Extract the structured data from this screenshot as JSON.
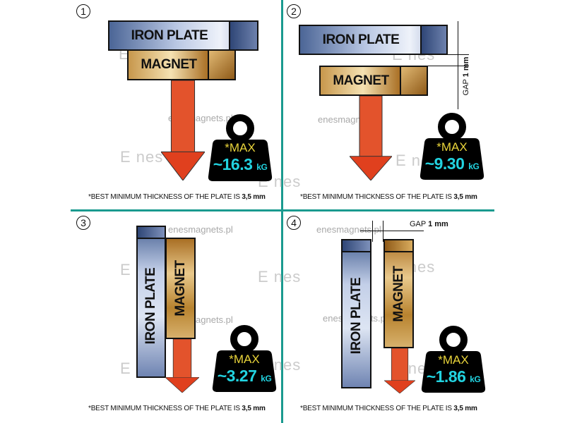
{
  "labels": {
    "iron_plate": "IRON PLATE",
    "magnet": "MAGNET",
    "max": "*MAX",
    "unit": "kG"
  },
  "footnote": {
    "text": "*BEST MINIMUM THICKNESS OF THE PLATE IS ",
    "value": "3,5 mm"
  },
  "watermark": {
    "site": "enesmagnets.pl",
    "logo": "Enes"
  },
  "gap": {
    "label": "GAP",
    "value": "1 mm"
  },
  "colors": {
    "divider": "#1a9a8f",
    "max": "#e8d33a",
    "value": "#22d3e0",
    "arrow": "#e0401e"
  },
  "panels": [
    {
      "number": "1",
      "value": "~16.3"
    },
    {
      "number": "2",
      "value": "~9.30"
    },
    {
      "number": "3",
      "value": "~3.27"
    },
    {
      "number": "4",
      "value": "~1.86"
    }
  ]
}
